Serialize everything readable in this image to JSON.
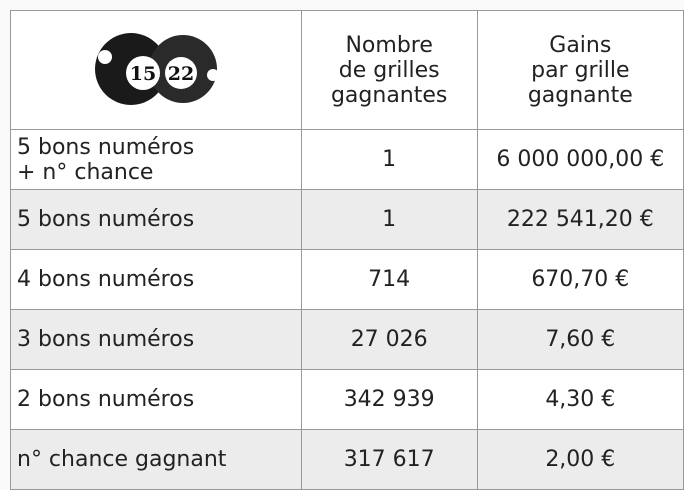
{
  "header": {
    "balls": [
      "15",
      "22"
    ],
    "columns": [
      [
        "Nombre",
        "de grilles",
        "gagnantes"
      ],
      [
        "Gains",
        "par grille",
        "gagnante"
      ]
    ]
  },
  "table": {
    "rows": [
      [
        [
          "5 bons numéros",
          "+ n° chance"
        ],
        "1",
        "6 000 000,00 €"
      ],
      [
        "5 bons numéros",
        "1",
        "222 541,20 €"
      ],
      [
        "4 bons numéros",
        "714",
        "670,70 €"
      ],
      [
        "3 bons numéros",
        "27 026",
        "7,60 €"
      ],
      [
        "2 bons numéros",
        "342 939",
        "4,30 €"
      ],
      [
        "n° chance gagnant",
        "317 617",
        "2,00 €"
      ]
    ]
  }
}
